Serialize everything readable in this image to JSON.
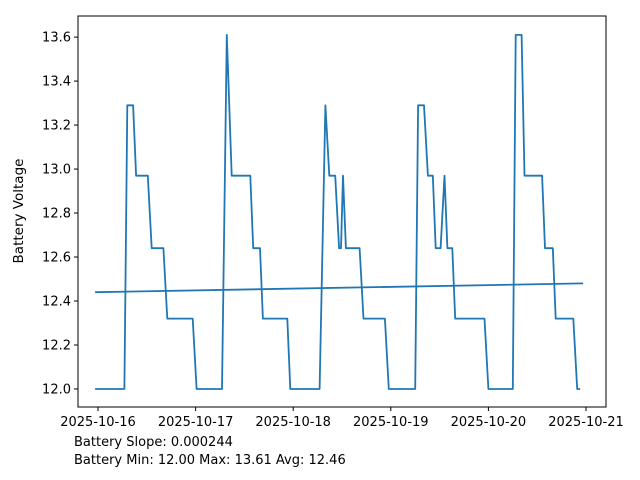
{
  "chart_data": {
    "type": "line",
    "title": "",
    "xlabel": "",
    "ylabel": "Battery Voltage",
    "x_unit": "days since 2025-10-16 00:00",
    "x_tick_values": [
      0,
      1,
      2,
      3,
      4,
      5
    ],
    "x_tick_labels": [
      "2025-10-16",
      "2025-10-17",
      "2025-10-18",
      "2025-10-19",
      "2025-10-20",
      "2025-10-21"
    ],
    "y_tick_values": [
      12.0,
      12.2,
      12.4,
      12.6,
      12.8,
      13.0,
      13.2,
      13.4,
      13.6
    ],
    "y_tick_labels": [
      "12.0",
      "12.2",
      "12.4",
      "12.6",
      "12.8",
      "13.0",
      "13.2",
      "13.4",
      "13.6"
    ],
    "xlim": [
      -0.205,
      5.205
    ],
    "ylim": [
      11.918,
      13.696
    ],
    "grid": false,
    "legend": "none",
    "line_color": "#1f77b4",
    "ylabel_color": "#1f77b4",
    "series": [
      {
        "name": "battery_voltage",
        "color": "#1f77b4",
        "points": [
          [
            -0.03,
            12.0
          ],
          [
            0.27,
            12.0
          ],
          [
            0.3,
            13.29
          ],
          [
            0.36,
            13.29
          ],
          [
            0.39,
            12.97
          ],
          [
            0.51,
            12.97
          ],
          [
            0.55,
            12.64
          ],
          [
            0.67,
            12.64
          ],
          [
            0.71,
            12.32
          ],
          [
            0.97,
            12.32
          ],
          [
            1.01,
            12.0
          ],
          [
            1.27,
            12.0
          ],
          [
            1.32,
            13.61
          ],
          [
            1.37,
            12.97
          ],
          [
            1.56,
            12.97
          ],
          [
            1.59,
            12.64
          ],
          [
            1.66,
            12.64
          ],
          [
            1.69,
            12.32
          ],
          [
            1.94,
            12.32
          ],
          [
            1.97,
            12.0
          ],
          [
            2.27,
            12.0
          ],
          [
            2.33,
            13.29
          ],
          [
            2.37,
            12.97
          ],
          [
            2.43,
            12.97
          ],
          [
            2.47,
            12.64
          ],
          [
            2.49,
            12.64
          ],
          [
            2.51,
            12.97
          ],
          [
            2.54,
            12.64
          ],
          [
            2.68,
            12.64
          ],
          [
            2.72,
            12.32
          ],
          [
            2.94,
            12.32
          ],
          [
            2.98,
            12.0
          ],
          [
            3.25,
            12.0
          ],
          [
            3.28,
            13.29
          ],
          [
            3.34,
            13.29
          ],
          [
            3.38,
            12.97
          ],
          [
            3.43,
            12.97
          ],
          [
            3.46,
            12.64
          ],
          [
            3.51,
            12.64
          ],
          [
            3.55,
            12.97
          ],
          [
            3.58,
            12.64
          ],
          [
            3.63,
            12.64
          ],
          [
            3.66,
            12.32
          ],
          [
            3.96,
            12.32
          ],
          [
            4.0,
            12.0
          ],
          [
            4.25,
            12.0
          ],
          [
            4.28,
            13.61
          ],
          [
            4.34,
            13.61
          ],
          [
            4.37,
            12.97
          ],
          [
            4.55,
            12.97
          ],
          [
            4.58,
            12.64
          ],
          [
            4.66,
            12.64
          ],
          [
            4.69,
            12.32
          ],
          [
            4.87,
            12.32
          ],
          [
            4.91,
            12.0
          ],
          [
            4.94,
            12.0
          ]
        ]
      },
      {
        "name": "battery_trend",
        "color": "#1f77b4",
        "points": [
          [
            -0.03,
            12.44
          ],
          [
            4.97,
            12.48
          ]
        ]
      }
    ],
    "annotations": [
      "Battery Slope: 0.000244",
      "Battery Min: 12.00 Max: 13.61 Avg: 12.46"
    ],
    "stats": {
      "slope": "0.000244",
      "min": "12.00",
      "max": "13.61",
      "avg": "12.46"
    }
  }
}
